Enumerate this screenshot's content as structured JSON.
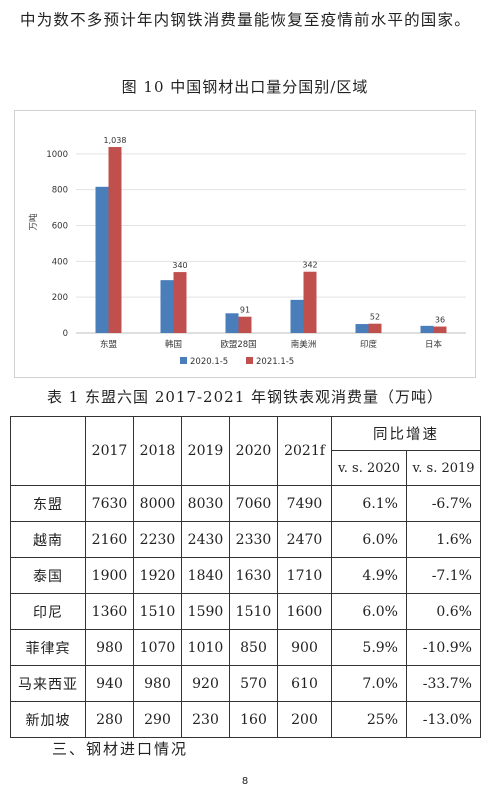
{
  "intro": {
    "text": "中为数不多预计年内钢铁消费量能恢复至疫情前水平的国家。"
  },
  "figure": {
    "title": "图 10  中国钢材出口量分国别/区域"
  },
  "chart_data": {
    "type": "bar",
    "categories": [
      "东盟",
      "韩国",
      "欧盟28国",
      "南美洲",
      "印度",
      "日本"
    ],
    "series": [
      {
        "name": "2020.1-5",
        "color": "#4a7ebb",
        "values": [
          816,
          295,
          110,
          185,
          50,
          40
        ]
      },
      {
        "name": "2021.1-5",
        "color": "#c0504d",
        "values": [
          1038,
          340,
          91,
          342,
          52,
          36
        ]
      }
    ],
    "data_labels": [
      "1,038",
      "340",
      "91",
      "342",
      "52",
      "36"
    ],
    "ylabel": "万吨",
    "ylim": [
      0,
      1200
    ],
    "yticks": [
      "0",
      "200",
      "400",
      "600",
      "800",
      "1000"
    ],
    "legend_position": "bottom"
  },
  "table": {
    "title": "表 1  东盟六国 2017-2021 年钢铁表观消费量（万吨）",
    "years": [
      "2017",
      "2018",
      "2019",
      "2020",
      "2021f"
    ],
    "yoy_header": "同比增速",
    "yoy_cols": [
      "v. s. 2020",
      "v. s. 2019"
    ],
    "rows": [
      {
        "country": "东盟",
        "values": [
          "7630",
          "8000",
          "8030",
          "7060",
          "7490"
        ],
        "yoy": [
          "6.1%",
          "-6.7%"
        ]
      },
      {
        "country": "越南",
        "values": [
          "2160",
          "2230",
          "2430",
          "2330",
          "2470"
        ],
        "yoy": [
          "6.0%",
          "1.6%"
        ]
      },
      {
        "country": "泰国",
        "values": [
          "1900",
          "1920",
          "1840",
          "1630",
          "1710"
        ],
        "yoy": [
          "4.9%",
          "-7.1%"
        ]
      },
      {
        "country": "印尼",
        "values": [
          "1360",
          "1510",
          "1590",
          "1510",
          "1600"
        ],
        "yoy": [
          "6.0%",
          "0.6%"
        ]
      },
      {
        "country": "菲律宾",
        "values": [
          "980",
          "1070",
          "1010",
          "850",
          "900"
        ],
        "yoy": [
          "5.9%",
          "-10.9%"
        ]
      },
      {
        "country": "马来西亚",
        "values": [
          "940",
          "980",
          "920",
          "570",
          "610"
        ],
        "yoy": [
          "7.0%",
          "-33.7%"
        ]
      },
      {
        "country": "新加坡",
        "values": [
          "280",
          "290",
          "230",
          "160",
          "200"
        ],
        "yoy": [
          "25%",
          "-13.0%"
        ]
      }
    ]
  },
  "section": {
    "heading": "三、钢材进口情况"
  },
  "page": {
    "number": "8"
  }
}
